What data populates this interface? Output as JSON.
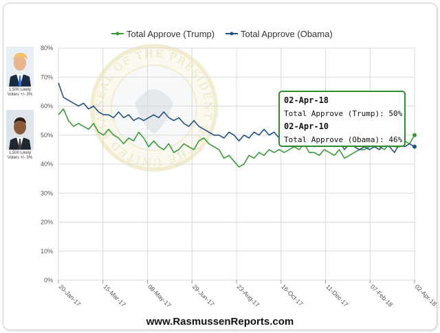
{
  "chart_data": {
    "type": "line",
    "title": "",
    "xlabel": "",
    "ylabel": "",
    "ylim": [
      0,
      80
    ],
    "y_ticks": [
      "0%",
      "10%",
      "20%",
      "30%",
      "40%",
      "50%",
      "60%",
      "70%",
      "80%"
    ],
    "x_ticks": [
      "20-Jan-17",
      "15-Mar-17",
      "08-May-17",
      "29-Jun-17",
      "23-Aug-17",
      "16-Oct-17",
      "11-Dec-17",
      "07-Feb-18",
      "02-Apr-18"
    ],
    "grid": true,
    "legend_position": "top",
    "series": [
      {
        "name": "Total Approve (Trump)",
        "color": "#3a9a3a",
        "values": [
          57,
          59,
          55,
          53,
          54,
          53,
          52,
          54,
          51,
          50,
          52,
          50,
          49,
          47,
          49,
          48,
          51,
          49,
          46,
          48,
          46,
          45,
          47,
          44,
          45,
          47,
          46,
          45,
          48,
          49,
          47,
          46,
          45,
          42,
          43,
          41,
          39,
          40,
          43,
          42,
          44,
          43,
          45,
          44,
          45,
          44,
          45,
          46,
          45,
          47,
          44,
          44,
          43,
          45,
          44,
          43,
          45,
          42,
          43,
          44,
          45,
          45,
          46,
          47,
          46,
          45,
          47,
          46,
          46,
          48,
          47,
          50
        ]
      },
      {
        "name": "Total Approve (Obama)",
        "color": "#24507e",
        "values": [
          68,
          63,
          62,
          61,
          60,
          61,
          59,
          60,
          58,
          57,
          57,
          56,
          58,
          56,
          57,
          55,
          56,
          55,
          56,
          57,
          56,
          58,
          56,
          55,
          56,
          54,
          53,
          55,
          53,
          52,
          51,
          50,
          50,
          49,
          51,
          50,
          48,
          50,
          49,
          51,
          50,
          52,
          50,
          51,
          49,
          50,
          51,
          49,
          50,
          49,
          48,
          46,
          47,
          48,
          47,
          46,
          48,
          45,
          47,
          46,
          45,
          46,
          45,
          46,
          45,
          47,
          46,
          44,
          47,
          46,
          47,
          46
        ]
      }
    ]
  },
  "legend": {
    "trump_label": "Total Approve (Trump)",
    "obama_label": "Total Approve (Obama)"
  },
  "sidebar": {
    "trump_caption": "1,500 Likely Voters +/- 3%",
    "obama_caption": "1,500 Likely Voters +/- 3%"
  },
  "tooltip": {
    "trump_date": "02-Apr-18",
    "trump_line": "Total Approve (Trump): 50%",
    "obama_date": "02-Apr-10",
    "obama_line": "Total Approve (Obama): 46%"
  },
  "seal": {
    "text": "SEAL OF THE PRESIDENT OF THE UNITED STATES"
  },
  "footer": {
    "site": "www.RasmussenReports.com"
  },
  "colors": {
    "trump": "#3a9a3a",
    "obama": "#24507e",
    "tooltip_border": "#2e8b2e",
    "grid": "#d9d9d9"
  }
}
